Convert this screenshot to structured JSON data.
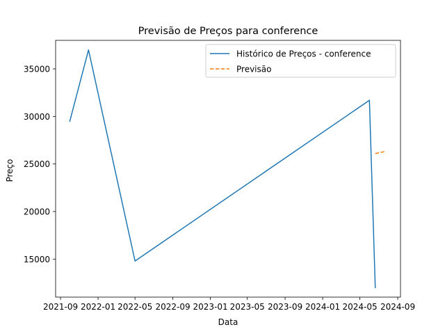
{
  "chart_data": {
    "type": "line",
    "title": "Previsão de Preços para conference",
    "xlabel": "Data",
    "ylabel": "Preço",
    "x_axis_type": "date",
    "xlim": [
      "2021-08-16",
      "2024-09-10"
    ],
    "ylim": [
      11000,
      38000
    ],
    "x_ticks": [
      "2021-09",
      "2022-01",
      "2022-05",
      "2022-09",
      "2023-01",
      "2023-05",
      "2023-09",
      "2024-01",
      "2024-05",
      "2024-09"
    ],
    "y_ticks": [
      15000,
      20000,
      25000,
      30000,
      35000
    ],
    "grid": false,
    "legend": {
      "position": "top-right"
    },
    "series": [
      {
        "name": "Histórico de Preços - conference",
        "color": "#1f77b4",
        "style": "solid",
        "points": [
          {
            "x": "2021-10-01",
            "y": 29500
          },
          {
            "x": "2021-12-01",
            "y": 37000
          },
          {
            "x": "2022-05-01",
            "y": 14800
          },
          {
            "x": "2024-06-01",
            "y": 31700
          },
          {
            "x": "2024-06-20",
            "y": 12000
          }
        ]
      },
      {
        "name": "Previsão",
        "color": "#ff7f0e",
        "style": "dashed",
        "points": [
          {
            "x": "2024-06-20",
            "y": 26100
          },
          {
            "x": "2024-07-20",
            "y": 26300
          }
        ]
      }
    ]
  }
}
